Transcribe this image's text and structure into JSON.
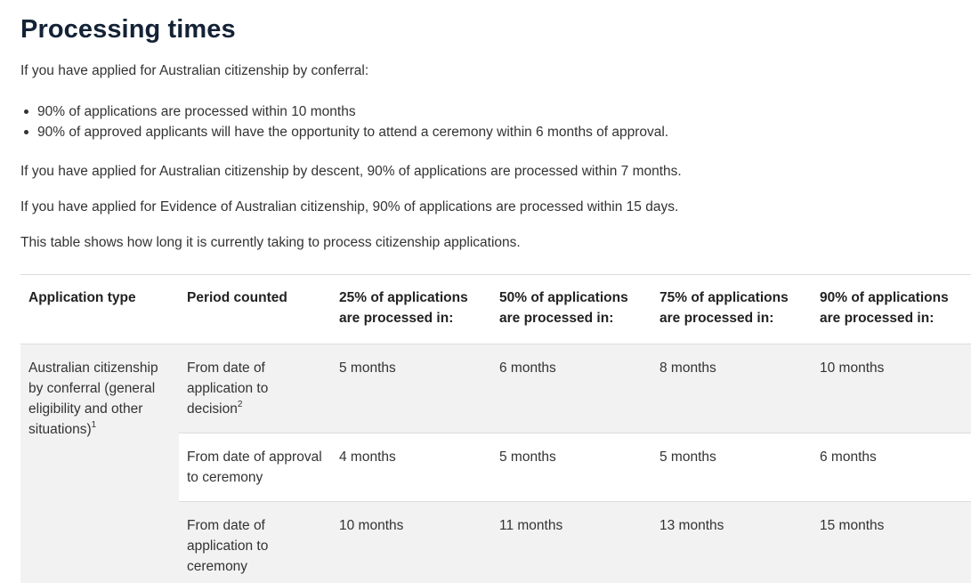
{
  "heading": "Processing times",
  "intro": "If you have applied for Australian citizenship by conferral:",
  "bullets": [
    "90% of applications are processed within 10 months",
    "90% of approved applicants will have the opportunity to attend a ceremony within 6 months of approval."
  ],
  "descent_text": "If you have applied for Australian citizenship by descent, 90% of applications are processed within 7 months.",
  "evidence_text": "If you have applied for Evidence of Australian citizenship, 90% of applications are processed within 15 days.",
  "table_intro": "This table shows how long it is currently taking to process citizenship applications.",
  "table": {
    "headers": [
      "Application type",
      "Period counted",
      "25% of applications are processed in:",
      "50% of applications are processed in:",
      "75% of applications are processed in:",
      "90% of applications are processed in:"
    ],
    "application_type": "Australian citizenship by conferral (general eligibility and other situations)",
    "application_type_note": "1",
    "rows": [
      {
        "period": "From date of application to decision",
        "period_note": "2",
        "p25": "5 months",
        "p50": "6 months",
        "p75": "8 months",
        "p90": "10 months"
      },
      {
        "period": "From date of approval to ceremony",
        "period_note": "",
        "p25": "4 months",
        "p50": "5 months",
        "p75": "5 months",
        "p90": "6 months"
      },
      {
        "period": "From date of application to ceremony",
        "period_note": "",
        "p25": "10 months",
        "p50": "11 months",
        "p75": "13 months",
        "p90": "15 months"
      }
    ]
  }
}
